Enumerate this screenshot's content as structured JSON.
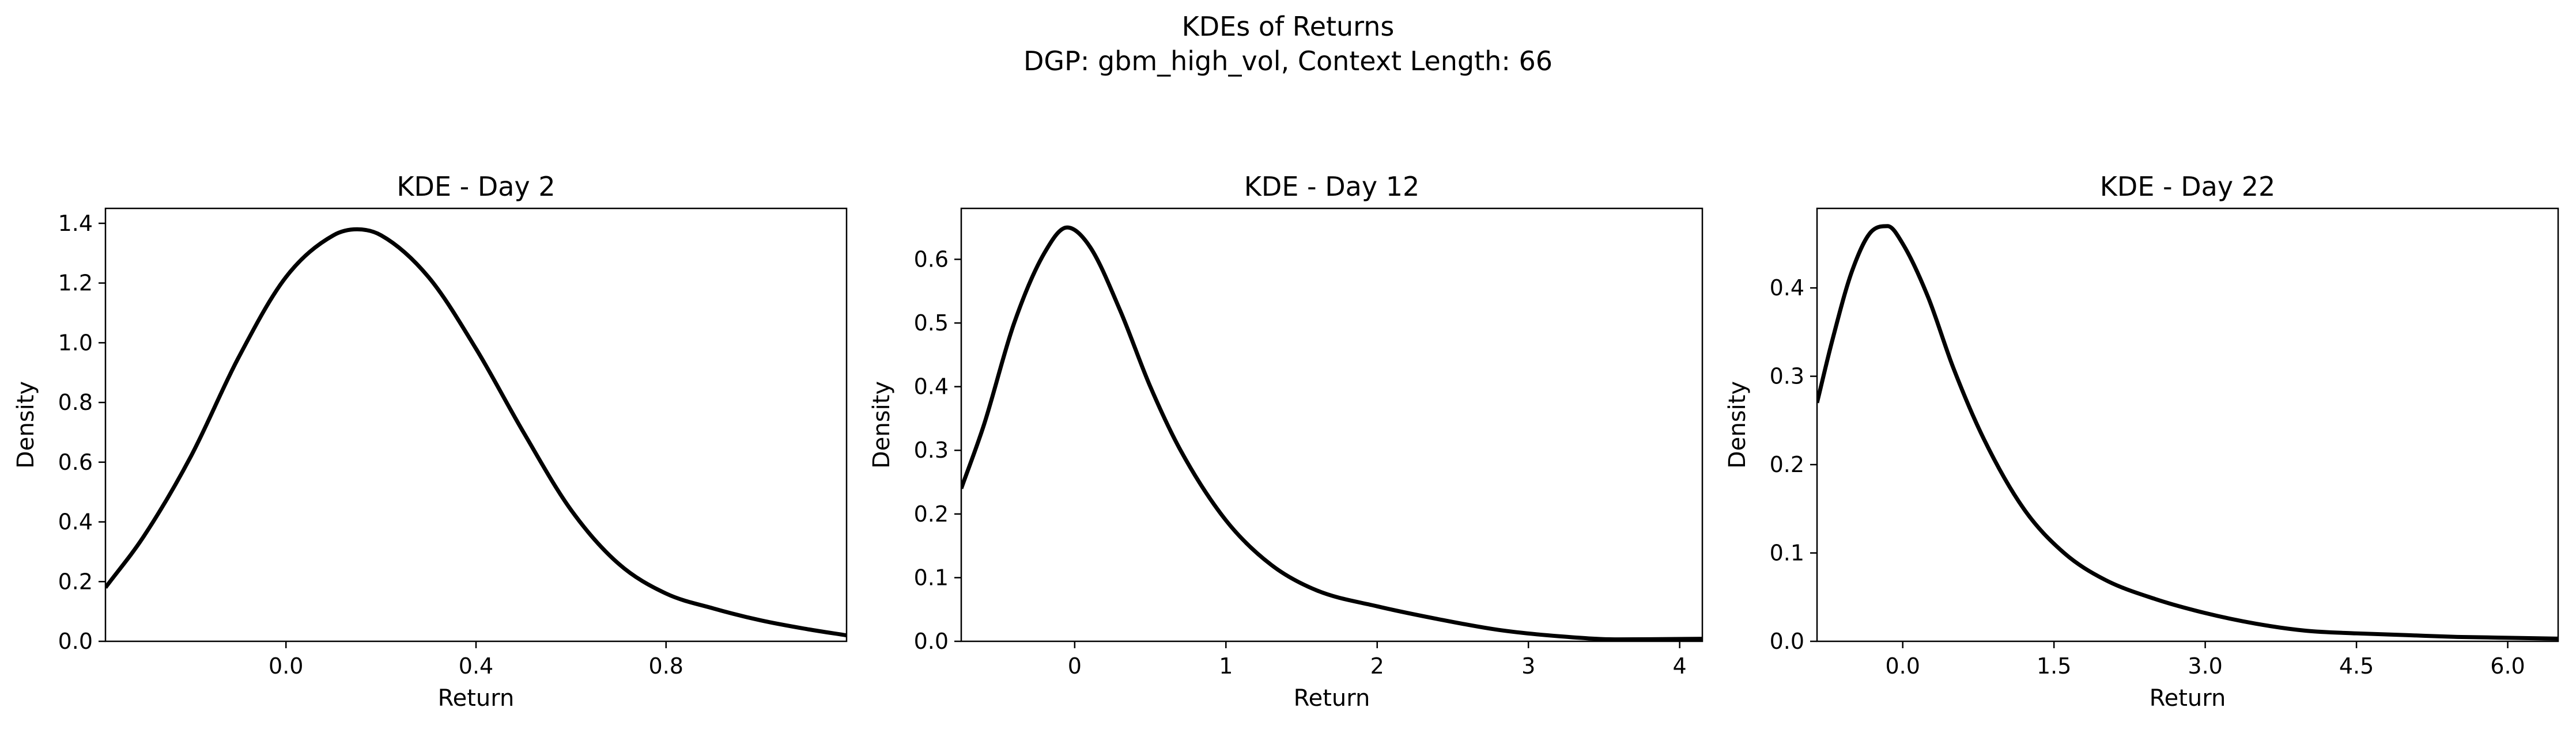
{
  "figure": {
    "suptitle_line1": "KDEs of Returns",
    "suptitle_line2": "DGP: gbm_high_vol, Context Length: 66"
  },
  "chart_data": [
    {
      "type": "line",
      "title": "KDE - Day 2",
      "xlabel": "Return",
      "ylabel": "Density",
      "xlim": [
        -0.38,
        1.18
      ],
      "ylim": [
        0.0,
        1.45
      ],
      "xticks": [
        0.0,
        0.4,
        0.8
      ],
      "xtick_labels": [
        "0.0",
        "0.4",
        "0.8"
      ],
      "yticks": [
        0.0,
        0.2,
        0.4,
        0.6,
        0.8,
        1.0,
        1.2,
        1.4
      ],
      "ytick_labels": [
        "0.0",
        "0.2",
        "0.4",
        "0.6",
        "0.8",
        "1.0",
        "1.2",
        "1.4"
      ],
      "line_color": "#000000",
      "grid": false,
      "x": [
        -0.38,
        -0.3,
        -0.2,
        -0.1,
        0.0,
        0.1,
        0.15,
        0.2,
        0.3,
        0.4,
        0.5,
        0.6,
        0.7,
        0.8,
        0.9,
        1.0,
        1.1,
        1.18
      ],
      "y": [
        0.18,
        0.35,
        0.62,
        0.95,
        1.22,
        1.36,
        1.38,
        1.36,
        1.22,
        0.98,
        0.7,
        0.44,
        0.26,
        0.16,
        0.11,
        0.07,
        0.04,
        0.02
      ]
    },
    {
      "type": "line",
      "title": "KDE - Day 12",
      "xlabel": "Return",
      "ylabel": "Density",
      "xlim": [
        -0.75,
        4.15
      ],
      "ylim": [
        0.0,
        0.68
      ],
      "xticks": [
        0,
        1,
        2,
        3,
        4
      ],
      "xtick_labels": [
        "0",
        "1",
        "2",
        "3",
        "4"
      ],
      "yticks": [
        0.0,
        0.1,
        0.2,
        0.3,
        0.4,
        0.5,
        0.6
      ],
      "ytick_labels": [
        "0.0",
        "0.1",
        "0.2",
        "0.3",
        "0.4",
        "0.5",
        "0.6"
      ],
      "line_color": "#000000",
      "grid": false,
      "x": [
        -0.75,
        -0.6,
        -0.4,
        -0.2,
        -0.05,
        0.1,
        0.3,
        0.5,
        0.7,
        1.0,
        1.3,
        1.6,
        2.0,
        2.4,
        2.8,
        3.2,
        3.6,
        4.15
      ],
      "y": [
        0.24,
        0.34,
        0.5,
        0.61,
        0.65,
        0.62,
        0.52,
        0.4,
        0.3,
        0.19,
        0.12,
        0.08,
        0.055,
        0.035,
        0.018,
        0.008,
        0.003,
        0.004
      ]
    },
    {
      "type": "line",
      "title": "KDE - Day 22",
      "xlabel": "Return",
      "ylabel": "Density",
      "xlim": [
        -0.85,
        6.5
      ],
      "ylim": [
        0.0,
        0.49
      ],
      "xticks": [
        0.0,
        1.5,
        3.0,
        4.5,
        6.0
      ],
      "xtick_labels": [
        "0.0",
        "1.5",
        "3.0",
        "4.5",
        "6.0"
      ],
      "yticks": [
        0.0,
        0.1,
        0.2,
        0.3,
        0.4
      ],
      "ytick_labels": [
        "0.0",
        "0.1",
        "0.2",
        "0.3",
        "0.4"
      ],
      "line_color": "#000000",
      "grid": false,
      "x": [
        -0.85,
        -0.7,
        -0.5,
        -0.3,
        -0.15,
        0.0,
        0.25,
        0.5,
        0.8,
        1.2,
        1.6,
        2.0,
        2.5,
        3.0,
        3.5,
        4.0,
        4.5,
        5.0,
        5.5,
        6.0,
        6.5
      ],
      "y": [
        0.27,
        0.34,
        0.42,
        0.465,
        0.47,
        0.45,
        0.39,
        0.31,
        0.23,
        0.15,
        0.1,
        0.07,
        0.048,
        0.032,
        0.02,
        0.012,
        0.009,
        0.007,
        0.005,
        0.004,
        0.003
      ]
    }
  ]
}
